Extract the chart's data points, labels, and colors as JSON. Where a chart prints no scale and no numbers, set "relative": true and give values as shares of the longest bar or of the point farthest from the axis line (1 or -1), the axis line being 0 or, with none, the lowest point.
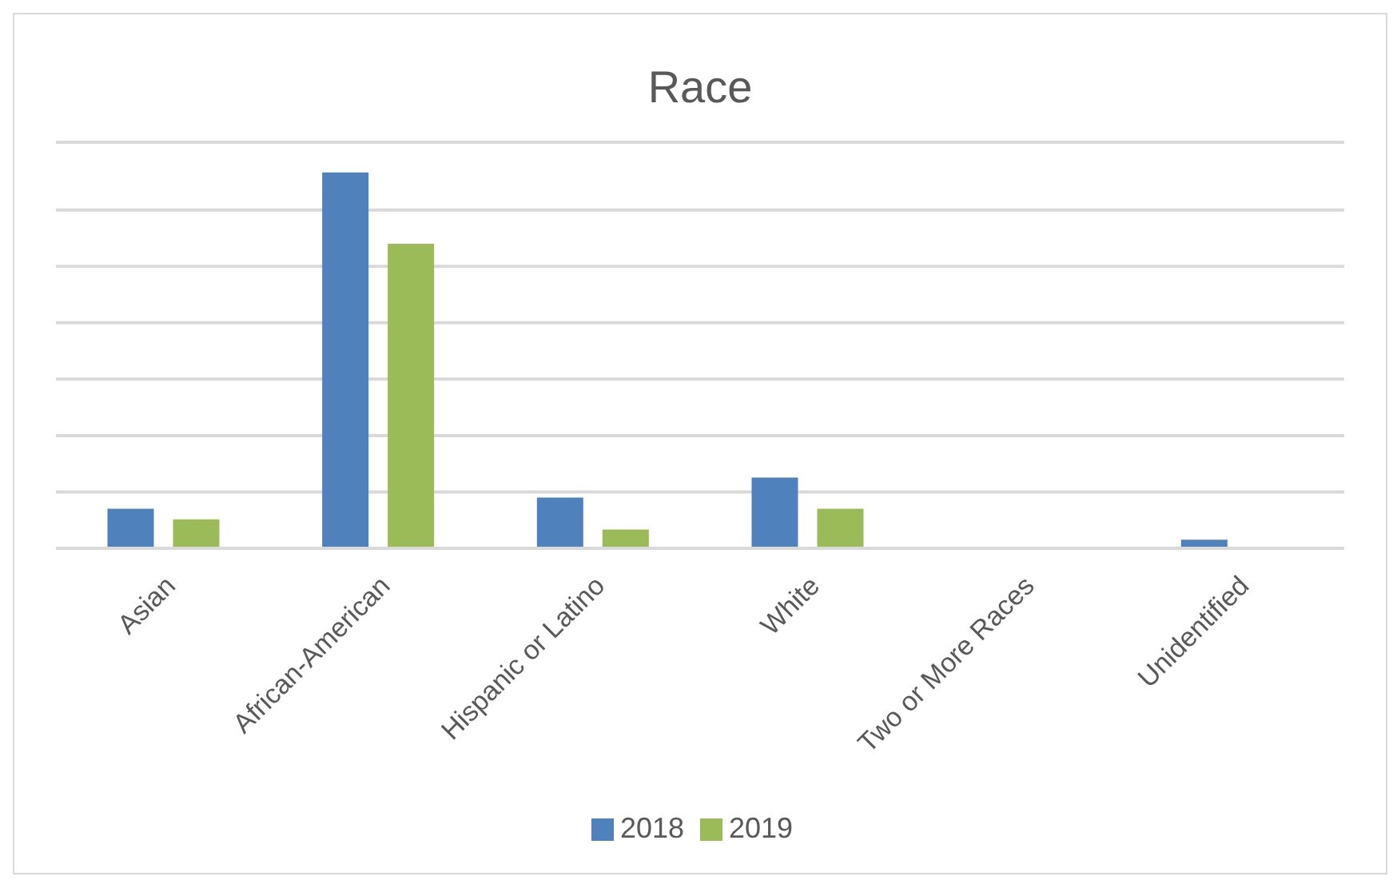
{
  "chart_data": {
    "type": "bar",
    "title": "Race",
    "relative": true,
    "grid": "y",
    "legend": "bottom",
    "categories": [
      "Asian",
      "African-American",
      "Hispanic or Latino",
      "White",
      "Two or More Races",
      "Unidentified"
    ],
    "series": [
      {
        "name": "2018",
        "color": "#4f81bd",
        "values": [
          0.105,
          1,
          0.135,
          0.188,
          0,
          0.023
        ]
      },
      {
        "name": "2019",
        "color": "#9bbb59",
        "values": [
          0.077,
          0.81,
          0.05,
          0.105,
          0,
          0
        ]
      }
    ]
  }
}
